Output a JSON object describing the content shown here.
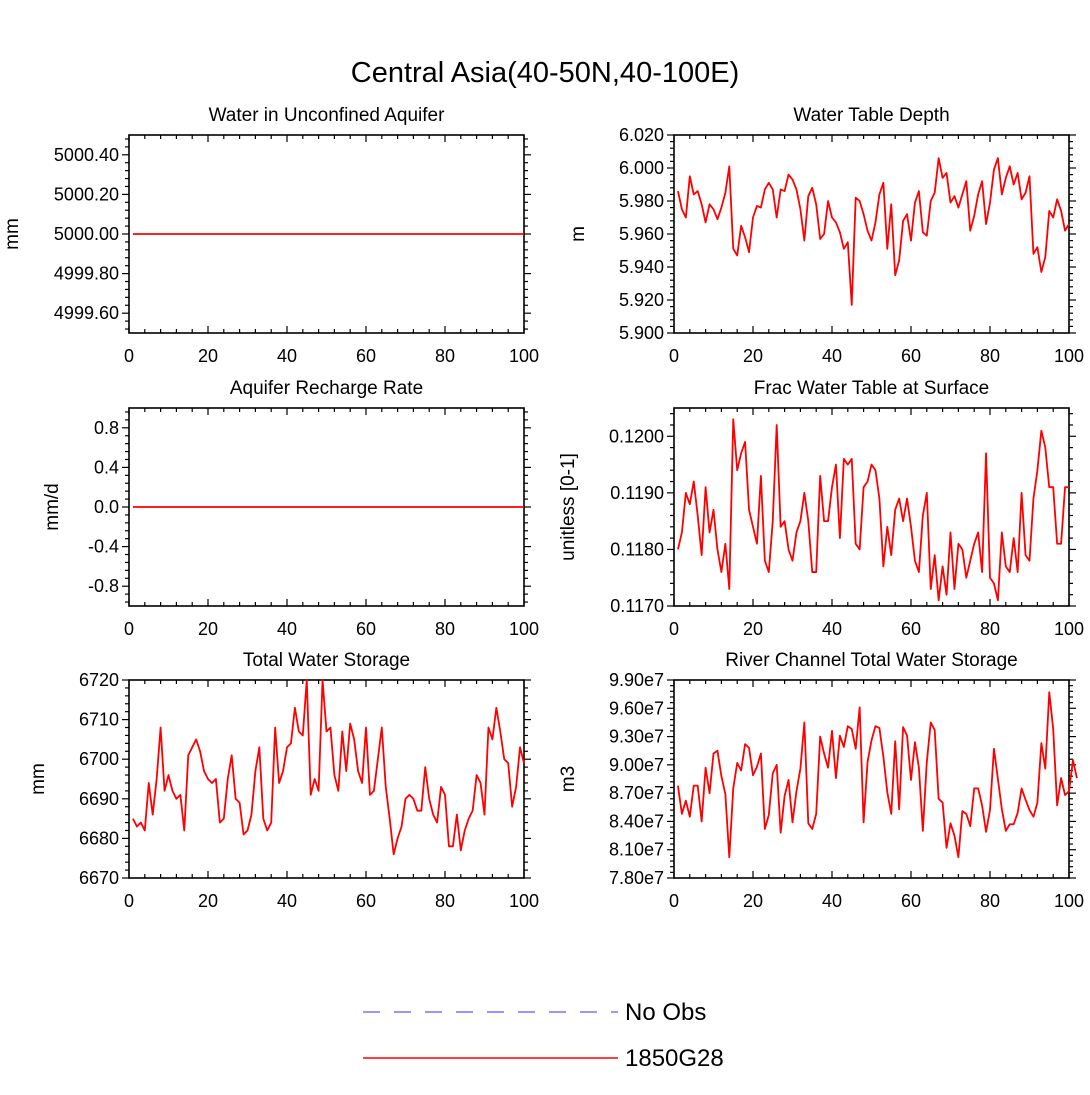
{
  "figure_title": "Central Asia(40-50N,40-100E)",
  "colors": {
    "model_line": "#ff0000",
    "obs_line": "#7777ff",
    "axis": "#000000",
    "background": "#ffffff"
  },
  "legend": [
    {
      "label": "No Obs",
      "style": "dashed",
      "color": "#7777ff"
    },
    {
      "label": "1850G28",
      "style": "solid",
      "color": "#ff0000"
    }
  ],
  "chart_data": [
    {
      "type": "line",
      "title": "Water in Unconfined Aquifer",
      "ylabel": "mm",
      "xlim": [
        0,
        100
      ],
      "ylim": [
        4999.5,
        5000.5
      ],
      "xticks": [
        "0",
        "20",
        "40",
        "60",
        "80",
        "100"
      ],
      "yticks": [
        4999.6,
        4999.8,
        5000.0,
        5000.2,
        5000.4
      ],
      "ytick_labels": [
        "4999.60",
        "4999.80",
        "5000.00",
        "5000.20",
        "5000.40"
      ],
      "series": [
        {
          "name": "1850G28",
          "x_start": 1,
          "x_step": 1,
          "values": [
            5000,
            5000,
            5000,
            5000,
            5000,
            5000,
            5000,
            5000,
            5000,
            5000,
            5000,
            5000,
            5000,
            5000,
            5000,
            5000,
            5000,
            5000,
            5000,
            5000,
            5000,
            5000,
            5000,
            5000,
            5000,
            5000,
            5000,
            5000,
            5000,
            5000,
            5000,
            5000,
            5000,
            5000,
            5000,
            5000,
            5000,
            5000,
            5000,
            5000,
            5000,
            5000,
            5000,
            5000,
            5000,
            5000,
            5000,
            5000,
            5000,
            5000,
            5000,
            5000,
            5000,
            5000,
            5000,
            5000,
            5000,
            5000,
            5000,
            5000,
            5000,
            5000,
            5000,
            5000,
            5000,
            5000,
            5000,
            5000,
            5000,
            5000,
            5000,
            5000,
            5000,
            5000,
            5000,
            5000,
            5000,
            5000,
            5000,
            5000,
            5000,
            5000,
            5000,
            5000,
            5000,
            5000,
            5000,
            5000,
            5000,
            5000,
            5000,
            5000,
            5000,
            5000,
            5000,
            5000,
            5000,
            5000,
            5000,
            5000
          ]
        }
      ]
    },
    {
      "type": "line",
      "title": "Water Table Depth",
      "ylabel": "m",
      "xlim": [
        0,
        100
      ],
      "ylim": [
        5.9,
        6.02
      ],
      "xticks": [
        "0",
        "20",
        "40",
        "60",
        "80",
        "100"
      ],
      "yticks": [
        5.9,
        5.92,
        5.94,
        5.96,
        5.98,
        6.0,
        6.02
      ],
      "ytick_labels": [
        "5.900",
        "5.920",
        "5.940",
        "5.960",
        "5.980",
        "6.000",
        "6.020"
      ],
      "series": [
        {
          "name": "1850G28",
          "x_start": 1,
          "x_step": 1,
          "values": [
            5.986,
            5.975,
            5.97,
            5.995,
            5.984,
            5.986,
            5.978,
            5.967,
            5.978,
            5.975,
            5.969,
            5.976,
            5.985,
            6.001,
            5.951,
            5.947,
            5.965,
            5.958,
            5.949,
            5.97,
            5.977,
            5.976,
            5.987,
            5.991,
            5.987,
            5.97,
            5.987,
            5.986,
            5.996,
            5.993,
            5.987,
            5.975,
            5.956,
            5.983,
            5.988,
            5.978,
            5.957,
            5.96,
            5.98,
            5.97,
            5.967,
            5.961,
            5.951,
            5.955,
            5.917,
            5.982,
            5.98,
            5.972,
            5.962,
            5.956,
            5.967,
            5.984,
            5.991,
            5.951,
            5.978,
            5.935,
            5.944,
            5.968,
            5.972,
            5.956,
            5.979,
            5.986,
            5.961,
            5.959,
            5.98,
            5.985,
            6.006,
            5.994,
            5.997,
            5.979,
            5.983,
            5.976,
            5.984,
            5.992,
            5.962,
            5.971,
            5.984,
            5.992,
            5.966,
            5.979,
            5.999,
            6.006,
            5.984,
            5.994,
            6.001,
            5.99,
            5.997,
            5.981,
            5.985,
            5.995,
            5.948,
            5.952,
            5.937,
            5.946,
            5.974,
            5.97,
            5.981,
            5.974,
            5.962,
            5.966
          ]
        }
      ]
    },
    {
      "type": "line",
      "title": "Aquifer Recharge Rate",
      "ylabel": "mm/d",
      "xlim": [
        0,
        100
      ],
      "ylim": [
        -1.0,
        1.0
      ],
      "xticks": [
        "0",
        "20",
        "40",
        "60",
        "80",
        "100"
      ],
      "yticks": [
        -0.8,
        -0.4,
        0.0,
        0.4,
        0.8
      ],
      "ytick_labels": [
        "-0.8",
        "-0.4",
        "0.0",
        "0.4",
        "0.8"
      ],
      "series": [
        {
          "name": "1850G28",
          "x_start": 1,
          "x_step": 1,
          "values": [
            0,
            0,
            0,
            0,
            0,
            0,
            0,
            0,
            0,
            0,
            0,
            0,
            0,
            0,
            0,
            0,
            0,
            0,
            0,
            0,
            0,
            0,
            0,
            0,
            0,
            0,
            0,
            0,
            0,
            0,
            0,
            0,
            0,
            0,
            0,
            0,
            0,
            0,
            0,
            0,
            0,
            0,
            0,
            0,
            0,
            0,
            0,
            0,
            0,
            0,
            0,
            0,
            0,
            0,
            0,
            0,
            0,
            0,
            0,
            0,
            0,
            0,
            0,
            0,
            0,
            0,
            0,
            0,
            0,
            0,
            0,
            0,
            0,
            0,
            0,
            0,
            0,
            0,
            0,
            0,
            0,
            0,
            0,
            0,
            0,
            0,
            0,
            0,
            0,
            0,
            0,
            0,
            0,
            0,
            0,
            0,
            0,
            0,
            0,
            0
          ]
        }
      ]
    },
    {
      "type": "line",
      "title": "Frac Water Table at Surface",
      "ylabel": "unitless [0-1]",
      "xlim": [
        0,
        100
      ],
      "ylim": [
        0.117,
        0.1205
      ],
      "xticks": [
        "0",
        "20",
        "40",
        "60",
        "80",
        "100"
      ],
      "yticks": [
        0.117,
        0.118,
        0.119,
        0.12
      ],
      "ytick_labels": [
        "0.1170",
        "0.1180",
        "0.1190",
        "0.1200"
      ],
      "series": [
        {
          "name": "1850G28",
          "x_start": 1,
          "x_step": 1,
          "values": [
            0.118,
            0.1183,
            0.119,
            0.1188,
            0.1192,
            0.1186,
            0.1179,
            0.1191,
            0.1183,
            0.1187,
            0.118,
            0.1176,
            0.1181,
            0.1173,
            0.1203,
            0.1194,
            0.1197,
            0.1199,
            0.1187,
            0.1184,
            0.1181,
            0.1193,
            0.1178,
            0.1176,
            0.1185,
            0.1202,
            0.1184,
            0.1185,
            0.118,
            0.1178,
            0.1183,
            0.1185,
            0.119,
            0.1185,
            0.1176,
            0.1176,
            0.1193,
            0.1185,
            0.1185,
            0.1191,
            0.1195,
            0.1182,
            0.1196,
            0.1195,
            0.1196,
            0.1181,
            0.118,
            0.1191,
            0.1192,
            0.1195,
            0.1194,
            0.1189,
            0.1177,
            0.1184,
            0.1179,
            0.1187,
            0.1189,
            0.1185,
            0.1189,
            0.1184,
            0.1178,
            0.1176,
            0.1186,
            0.119,
            0.1173,
            0.1179,
            0.1171,
            0.1177,
            0.1172,
            0.1183,
            0.1173,
            0.1181,
            0.118,
            0.1175,
            0.1178,
            0.1181,
            0.1183,
            0.1176,
            0.1197,
            0.1175,
            0.1174,
            0.1171,
            0.1183,
            0.1177,
            0.1176,
            0.1182,
            0.1176,
            0.119,
            0.1179,
            0.1178,
            0.1189,
            0.1194,
            0.1201,
            0.1198,
            0.1191,
            0.1191,
            0.1181,
            0.1181,
            0.1191,
            0.1191
          ]
        }
      ]
    },
    {
      "type": "line",
      "title": "Total Water Storage",
      "ylabel": "mm",
      "xlim": [
        0,
        100
      ],
      "ylim": [
        6670,
        6720
      ],
      "xticks": [
        "0",
        "20",
        "40",
        "60",
        "80",
        "100"
      ],
      "yticks": [
        6670,
        6680,
        6690,
        6700,
        6710,
        6720
      ],
      "ytick_labels": [
        "6670",
        "6680",
        "6690",
        "6700",
        "6710",
        "6720"
      ],
      "series": [
        {
          "name": "1850G28",
          "x_start": 1,
          "x_step": 1,
          "values": [
            6685,
            6683,
            6684,
            6682,
            6694,
            6686,
            6695,
            6708,
            6692,
            6696,
            6692,
            6690,
            6691,
            6682,
            6701,
            6703,
            6705,
            6702,
            6697,
            6695,
            6694,
            6695,
            6684,
            6685,
            6695,
            6701,
            6690,
            6689,
            6681,
            6682,
            6686,
            6697,
            6703,
            6685,
            6682,
            6684,
            6708,
            6694,
            6697,
            6703,
            6704,
            6713,
            6707,
            6706,
            6720,
            6691,
            6695,
            6692,
            6720,
            6707,
            6708,
            6696,
            6692,
            6707,
            6697,
            6709,
            6705,
            6697,
            6694,
            6708,
            6691,
            6692,
            6700,
            6708,
            6693,
            6685,
            6676,
            6680,
            6683,
            6690,
            6691,
            6690,
            6687,
            6687,
            6698,
            6690,
            6686,
            6684,
            6693,
            6691,
            6678,
            6678,
            6686,
            6677,
            6682,
            6685,
            6687,
            6696,
            6694,
            6686,
            6708,
            6705,
            6713,
            6707,
            6700,
            6699,
            6688,
            6693,
            6703,
            6699
          ]
        }
      ]
    },
    {
      "type": "line",
      "title": "River Channel Total Water Storage",
      "ylabel": "m3",
      "xlim": [
        0,
        100
      ],
      "ylim": [
        78000000.0,
        99000000.0
      ],
      "xticks": [
        "0",
        "20",
        "40",
        "60",
        "80",
        "100"
      ],
      "yticks": [
        78000000.0,
        81000000.0,
        84000000.0,
        87000000.0,
        90000000.0,
        93000000.0,
        96000000.0,
        99000000.0
      ],
      "ytick_labels": [
        "7.80e7",
        "8.10e7",
        "8.40e7",
        "8.70e7",
        "9.00e7",
        "9.30e7",
        "9.60e7",
        "9.90e7"
      ],
      "series": [
        {
          "name": "1850G28",
          "x_start": 1,
          "x_step": 1,
          "values": [
            87800000.0,
            84800000.0,
            86200000.0,
            84500000.0,
            87800000.0,
            87800000.0,
            84000000.0,
            89700000.0,
            87000000.0,
            91200000.0,
            91500000.0,
            88800000.0,
            86900000.0,
            80200000.0,
            87500000.0,
            90200000.0,
            89400000.0,
            92200000.0,
            91800000.0,
            88900000.0,
            89800000.0,
            91200000.0,
            83200000.0,
            84700000.0,
            89100000.0,
            90000000.0,
            82800000.0,
            86700000.0,
            88400000.0,
            83900000.0,
            87200000.0,
            89600000.0,
            94500000.0,
            83800000.0,
            83200000.0,
            84800000.0,
            93000000.0,
            91200000.0,
            89700000.0,
            93600000.0,
            88600000.0,
            93100000.0,
            91900000.0,
            94100000.0,
            93800000.0,
            91700000.0,
            96100000.0,
            83900000.0,
            90300000.0,
            92600000.0,
            94100000.0,
            93900000.0,
            90900000.0,
            87100000.0,
            84800000.0,
            92500000.0,
            85300000.0,
            94000000.0,
            93100000.0,
            88400000.0,
            92400000.0,
            89700000.0,
            83000000.0,
            90300000.0,
            94500000.0,
            93700000.0,
            86400000.0,
            86000000.0,
            81200000.0,
            83800000.0,
            82500000.0,
            80200000.0,
            85100000.0,
            84800000.0,
            83500000.0,
            87500000.0,
            87500000.0,
            85700000.0,
            82900000.0,
            85200000.0,
            91700000.0,
            88500000.0,
            85300000.0,
            83000000.0,
            83700000.0,
            83700000.0,
            84900000.0,
            87500000.0,
            86300000.0,
            85200000.0,
            84500000.0,
            86000000.0,
            92300000.0,
            89600000.0,
            97700000.0,
            93800000.0,
            85700000.0,
            88600000.0,
            86800000.0,
            87200000.0,
            90500000.0,
            88600000.0
          ]
        }
      ]
    }
  ]
}
